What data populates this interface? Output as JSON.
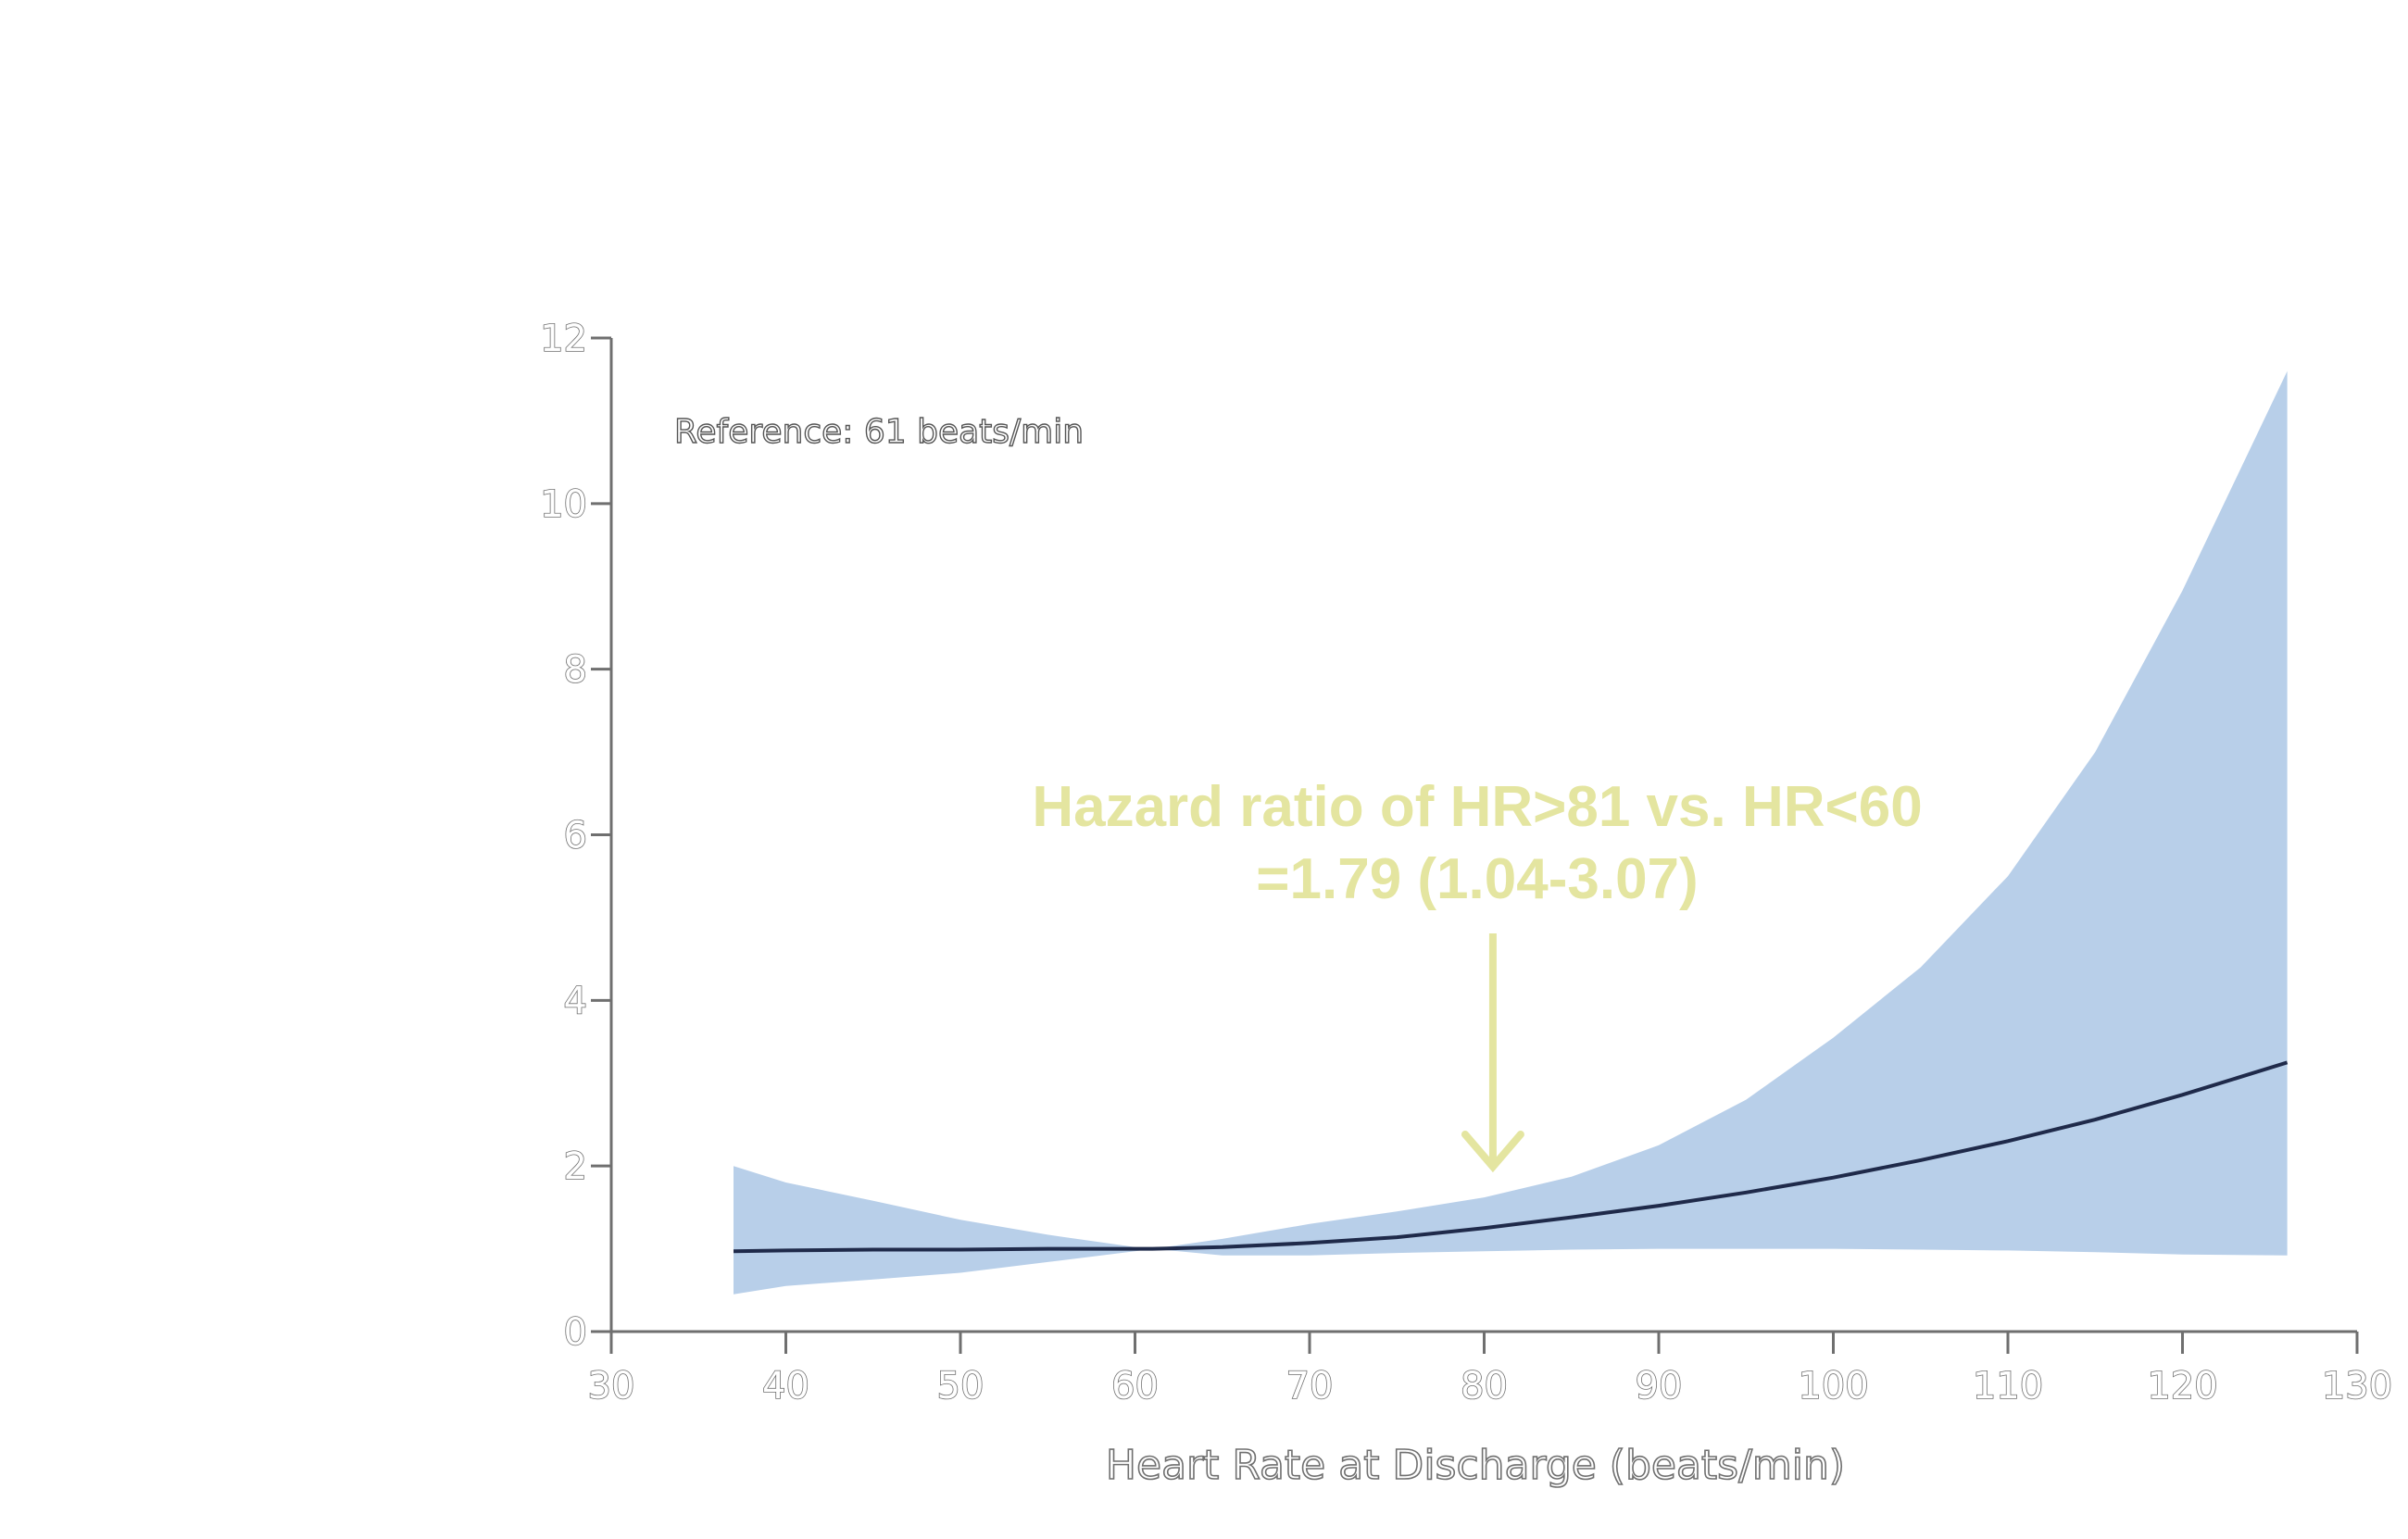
{
  "chart_data": {
    "type": "line",
    "title": "",
    "xlabel": "Heart Rate at Discharge (beats/min)",
    "ylabel": "",
    "xlim": [
      30,
      130
    ],
    "ylim": [
      0,
      12
    ],
    "xticks": [
      30,
      40,
      50,
      60,
      70,
      80,
      90,
      100,
      110,
      120,
      130
    ],
    "yticks": [
      0,
      2,
      4,
      6,
      8,
      10,
      12
    ],
    "grid": false,
    "reference_note": "Reference: 61 beats/min",
    "annotation": {
      "lines": [
        "Hazard ratio of HR>81 vs. HR<60",
        "=1.79 (1.04-3.07)"
      ],
      "arrow_points_to_x": 80.5
    },
    "series": [
      {
        "x": [
          37,
          40,
          45,
          50,
          55,
          60,
          61,
          65,
          70,
          75,
          80,
          85,
          90,
          95,
          100,
          105,
          110,
          115,
          120,
          126
        ],
        "hr": [
          0.97,
          0.98,
          0.99,
          0.99,
          1.0,
          1.0,
          1.0,
          1.02,
          1.07,
          1.14,
          1.25,
          1.38,
          1.52,
          1.68,
          1.86,
          2.07,
          2.3,
          2.56,
          2.86,
          3.25
        ],
        "lower": [
          0.45,
          0.55,
          0.63,
          0.71,
          0.84,
          0.97,
          1.0,
          0.92,
          0.92,
          0.95,
          0.97,
          0.99,
          1.0,
          1.0,
          1.0,
          0.99,
          0.98,
          0.96,
          0.93,
          0.92
        ],
        "upper": [
          2.0,
          1.8,
          1.58,
          1.35,
          1.17,
          1.02,
          1.0,
          1.12,
          1.3,
          1.45,
          1.62,
          1.87,
          2.25,
          2.8,
          3.55,
          4.4,
          5.5,
          7.0,
          8.95,
          11.6
        ]
      }
    ],
    "colors": {
      "line": "#1f2a4a",
      "band": "#b8cfe9",
      "annotation": "#e4e5a0",
      "axis": "#6f6f6f"
    }
  }
}
